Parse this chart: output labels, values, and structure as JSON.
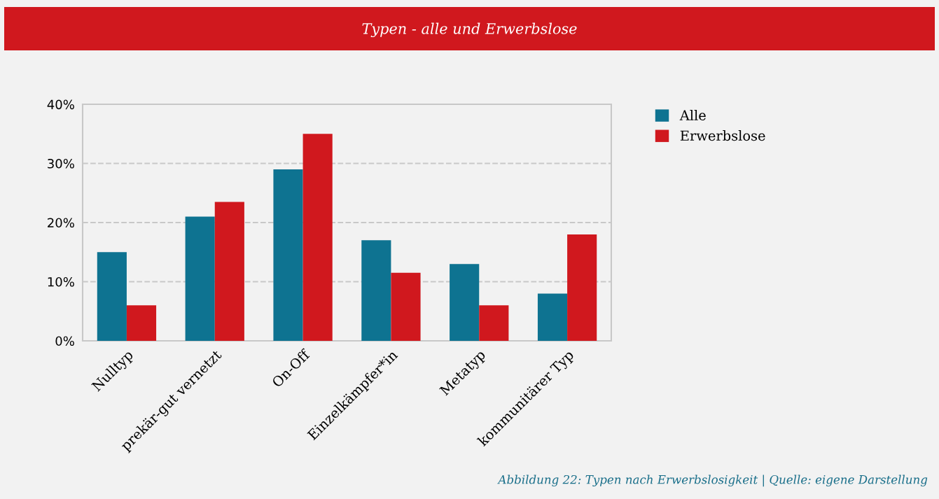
{
  "chart_data": {
    "type": "bar",
    "title": "Typen - alle und Erwerbslose",
    "categories": [
      "Nulltyp",
      "prekär-gut vernetzt",
      "On-Off",
      "Einzelkämpfer*in",
      "Metatyp",
      "kommunitärer Typ"
    ],
    "series": [
      {
        "name": "Alle",
        "color": "#0e7391",
        "values": [
          15,
          21,
          29,
          17,
          13,
          8
        ]
      },
      {
        "name": "Erwerbslose",
        "color": "#d0181e",
        "values": [
          6,
          23.5,
          35,
          11.5,
          6,
          18
        ]
      }
    ],
    "ylim": [
      0,
      40
    ],
    "yticks": [
      {
        "value": 0,
        "label": "0%"
      },
      {
        "value": 10,
        "label": "10%"
      },
      {
        "value": 20,
        "label": "20%"
      },
      {
        "value": 30,
        "label": "30%"
      },
      {
        "value": 40,
        "label": "40%"
      }
    ],
    "grid": "y",
    "legend": "top right",
    "annotations": [
      "Abbildung 22: Typen nach Erwerbslosigkeit | Quelle: eigene Darstellung"
    ]
  }
}
